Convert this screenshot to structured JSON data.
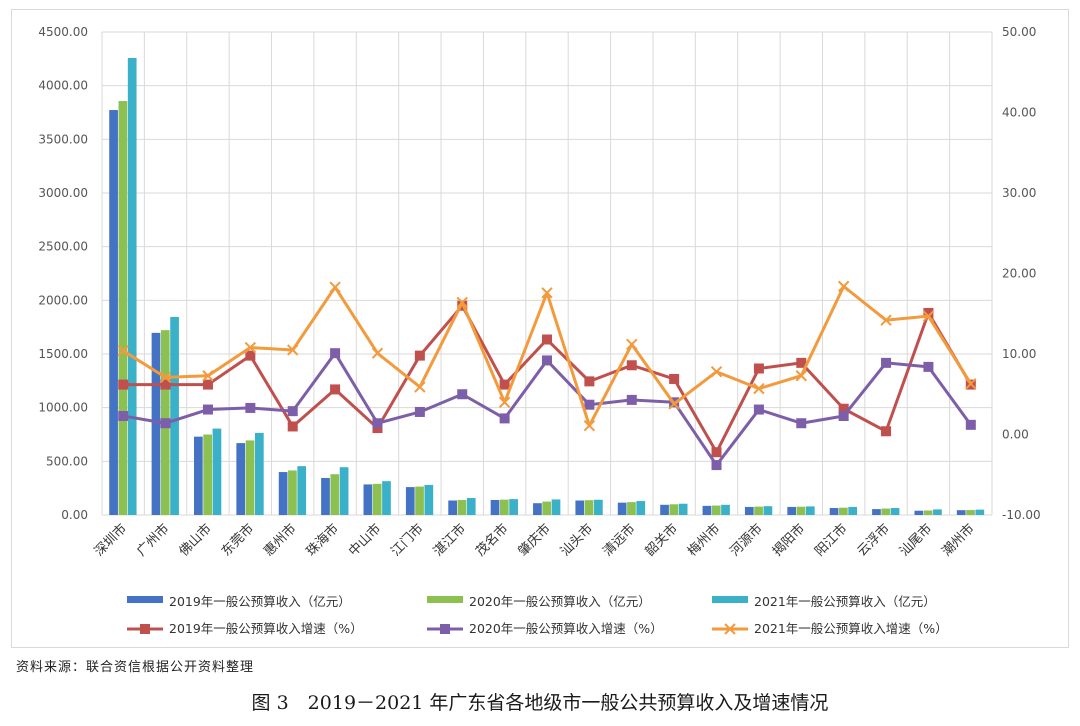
{
  "chart_data": {
    "type": "bar",
    "categories": [
      "深圳市",
      "广州市",
      "佛山市",
      "东莞市",
      "惠州市",
      "珠海市",
      "中山市",
      "江门市",
      "湛江市",
      "茂名市",
      "肇庆市",
      "汕头市",
      "清远市",
      "韶关市",
      "梅州市",
      "河源市",
      "揭阳市",
      "阳江市",
      "云浮市",
      "汕尾市",
      "潮州市"
    ],
    "bar_series": [
      {
        "name": "2019年一般公预算收入（亿元）",
        "color": "#4472c4",
        "values": [
          3773,
          1697,
          730,
          670,
          400,
          345,
          285,
          260,
          135,
          140,
          110,
          135,
          115,
          95,
          85,
          75,
          75,
          65,
          55,
          40,
          45
        ]
      },
      {
        "name": "2020年一般公预算收入（亿元）",
        "color": "#8cc152",
        "values": [
          3857,
          1722,
          750,
          695,
          415,
          380,
          290,
          265,
          140,
          143,
          125,
          138,
          120,
          100,
          88,
          78,
          77,
          68,
          60,
          42,
          46
        ]
      },
      {
        "name": "2021年一般公预算收入（亿元）",
        "color": "#3ab0c9",
        "values": [
          4258,
          1845,
          805,
          765,
          455,
          445,
          315,
          280,
          158,
          148,
          145,
          142,
          130,
          105,
          95,
          82,
          80,
          75,
          65,
          52,
          50
        ]
      }
    ],
    "line_series": [
      {
        "name": "2019年一般公预算收入增速（%）",
        "color": "#c0504d",
        "marker": "square",
        "values": [
          6.2,
          6.2,
          6.2,
          9.8,
          1.0,
          5.6,
          0.8,
          9.8,
          16.0,
          6.2,
          11.8,
          6.6,
          8.6,
          6.9,
          -2.2,
          8.2,
          8.9,
          3.2,
          0.4,
          15.1,
          6.2
        ]
      },
      {
        "name": "2020年一般公预算收入增速（%）",
        "color": "#7d5ea8",
        "marker": "square",
        "values": [
          2.3,
          1.4,
          3.1,
          3.3,
          2.9,
          10.1,
          1.4,
          2.8,
          5.0,
          2.0,
          9.2,
          3.7,
          4.3,
          4.0,
          -3.8,
          3.1,
          1.4,
          2.3,
          8.9,
          8.4,
          1.2
        ]
      },
      {
        "name": "2021年一般公预算收入增速（%）",
        "color": "#f39a3c",
        "marker": "x",
        "values": [
          10.4,
          7.1,
          7.3,
          10.8,
          10.5,
          18.3,
          10.1,
          5.9,
          16.4,
          4.0,
          17.6,
          1.1,
          11.2,
          3.8,
          7.8,
          5.7,
          7.3,
          18.4,
          14.2,
          14.7,
          6.3
        ]
      }
    ],
    "y_left": {
      "min": 0,
      "max": 4500,
      "step": 500,
      "ticks": [
        "0.00",
        "500.00",
        "1000.00",
        "1500.00",
        "2000.00",
        "2500.00",
        "3000.00",
        "3500.00",
        "4000.00",
        "4500.00"
      ]
    },
    "y_right": {
      "min": -10,
      "max": 50,
      "step": 10,
      "ticks": [
        "-10.00",
        "0.00",
        "10.00",
        "20.00",
        "30.00",
        "40.00",
        "50.00"
      ]
    },
    "grid": true,
    "legend_position": "bottom",
    "colors": {
      "grid": "#d9d9d9",
      "axis_text": "#555555"
    }
  },
  "source_note": "资料来源：联合资信根据公开资料整理",
  "caption": "图 3　2019－2021 年广东省各地级市一般公共预算收入及增速情况"
}
